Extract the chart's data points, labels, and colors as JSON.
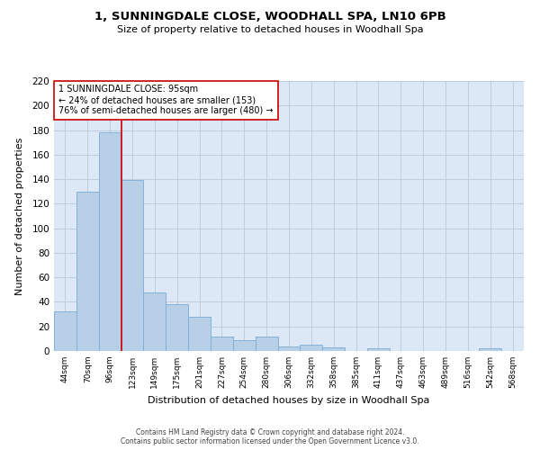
{
  "title": "1, SUNNINGDALE CLOSE, WOODHALL SPA, LN10 6PB",
  "subtitle": "Size of property relative to detached houses in Woodhall Spa",
  "xlabel": "Distribution of detached houses by size in Woodhall Spa",
  "ylabel": "Number of detached properties",
  "bar_labels": [
    "44sqm",
    "70sqm",
    "96sqm",
    "123sqm",
    "149sqm",
    "175sqm",
    "201sqm",
    "227sqm",
    "254sqm",
    "280sqm",
    "306sqm",
    "332sqm",
    "358sqm",
    "385sqm",
    "411sqm",
    "437sqm",
    "463sqm",
    "489sqm",
    "516sqm",
    "542sqm",
    "568sqm"
  ],
  "bar_values": [
    32,
    130,
    178,
    139,
    48,
    38,
    28,
    12,
    9,
    12,
    4,
    5,
    3,
    0,
    2,
    0,
    0,
    0,
    0,
    2,
    0
  ],
  "bar_color": "#b8cfe8",
  "bar_edge_color": "#7aadd4",
  "ylim": [
    0,
    220
  ],
  "yticks": [
    0,
    20,
    40,
    60,
    80,
    100,
    120,
    140,
    160,
    180,
    200,
    220
  ],
  "property_line_color": "#cc0000",
  "annotation_title": "1 SUNNINGDALE CLOSE: 95sqm",
  "annotation_line1": "← 24% of detached houses are smaller (153)",
  "annotation_line2": "76% of semi-detached houses are larger (480) →",
  "annotation_box_color": "#ffffff",
  "annotation_box_edge": "#cc0000",
  "footer1": "Contains HM Land Registry data © Crown copyright and database right 2024.",
  "footer2": "Contains public sector information licensed under the Open Government Licence v3.0.",
  "background_color": "#ffffff",
  "plot_bg_color": "#dce8f5",
  "grid_color": "#b8c8dc"
}
